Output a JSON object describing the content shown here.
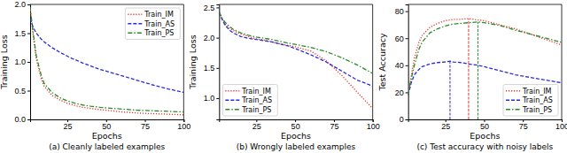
{
  "chart_data": [
    {
      "type": "line",
      "title": "(a) Cleanly labeled examples",
      "x_label": "Epochs",
      "y_label": "Training Loss",
      "x": [
        1,
        3,
        5,
        8,
        10,
        15,
        20,
        25,
        28,
        30,
        35,
        40,
        46,
        50,
        60,
        70,
        80,
        90,
        100
      ],
      "xlim": [
        1,
        100
      ],
      "xticks": [
        25,
        50,
        75,
        100
      ],
      "ylim": [
        0,
        2.0
      ],
      "yticks": [
        {
          "value": 0,
          "label": "0.0"
        },
        {
          "value": 0.5,
          "label": "0.5"
        },
        {
          "value": 1.0,
          "label": "1.0"
        },
        {
          "value": 1.5,
          "label": "1.5"
        },
        {
          "value": 2.0,
          "label": "2.0"
        }
      ],
      "grid": false,
      "legend": "upper right",
      "series": [
        {
          "name": "Train_IM",
          "color": "#e8312f",
          "line_style": "dotted",
          "values": [
            1.95,
            1.45,
            1.05,
            0.72,
            0.58,
            0.42,
            0.34,
            0.28,
            0.26,
            0.24,
            0.21,
            0.19,
            0.17,
            0.16,
            0.13,
            0.11,
            0.1,
            0.09,
            0.08
          ]
        },
        {
          "name": "Train_AS",
          "color": "#2b2bd9",
          "line_style": "dashed",
          "values": [
            1.75,
            1.6,
            1.5,
            1.4,
            1.35,
            1.25,
            1.17,
            1.1,
            1.06,
            1.04,
            0.98,
            0.93,
            0.87,
            0.84,
            0.76,
            0.68,
            0.6,
            0.53,
            0.47
          ]
        },
        {
          "name": "Train_PS",
          "color": "#2a8a2a",
          "line_style": "dashdot",
          "values": [
            1.95,
            1.5,
            1.1,
            0.78,
            0.63,
            0.47,
            0.38,
            0.32,
            0.3,
            0.28,
            0.25,
            0.23,
            0.21,
            0.2,
            0.18,
            0.16,
            0.15,
            0.14,
            0.13
          ]
        }
      ]
    },
    {
      "type": "line",
      "title": "(b) Wrongly labeled examples",
      "x_label": "Epochs",
      "y_label": "Training Loss",
      "x": [
        1,
        3,
        5,
        8,
        10,
        15,
        20,
        25,
        28,
        30,
        35,
        40,
        46,
        50,
        60,
        70,
        80,
        90,
        100
      ],
      "xlim": [
        1,
        100
      ],
      "xticks": [
        25,
        50,
        75,
        100
      ],
      "ylim": [
        0.65,
        2.55
      ],
      "yticks": [
        {
          "value": 1.0,
          "label": "1.0"
        },
        {
          "value": 1.5,
          "label": "1.5"
        },
        {
          "value": 2.0,
          "label": "2.0"
        },
        {
          "value": 2.5,
          "label": "2.5"
        }
      ],
      "grid": false,
      "legend": "lower left",
      "series": [
        {
          "name": "Train_IM",
          "color": "#e8312f",
          "line_style": "dotted",
          "values": [
            2.42,
            2.3,
            2.22,
            2.15,
            2.12,
            2.06,
            2.02,
            1.98,
            1.97,
            1.96,
            1.93,
            1.9,
            1.87,
            1.85,
            1.78,
            1.62,
            1.38,
            1.1,
            0.83
          ]
        },
        {
          "name": "Train_AS",
          "color": "#2b2bd9",
          "line_style": "dashed",
          "values": [
            2.42,
            2.3,
            2.2,
            2.12,
            2.08,
            2.02,
            1.99,
            1.97,
            1.96,
            1.95,
            1.93,
            1.9,
            1.86,
            1.82,
            1.72,
            1.6,
            1.45,
            1.3,
            1.2
          ]
        },
        {
          "name": "Train_PS",
          "color": "#2a8a2a",
          "line_style": "dashdot",
          "values": [
            2.42,
            2.32,
            2.25,
            2.18,
            2.14,
            2.08,
            2.04,
            2.01,
            2.0,
            1.99,
            1.97,
            1.94,
            1.91,
            1.89,
            1.84,
            1.77,
            1.67,
            1.55,
            1.41
          ]
        }
      ]
    },
    {
      "type": "line",
      "title": "(c) Test accuracy with noisy labels",
      "x_label": "Epochs",
      "y_label": "Test Accuracy",
      "x": [
        1,
        3,
        5,
        8,
        10,
        15,
        20,
        25,
        28,
        30,
        35,
        40,
        46,
        50,
        60,
        70,
        80,
        90,
        100
      ],
      "xlim": [
        1,
        100
      ],
      "xticks": [
        25,
        50,
        75,
        100
      ],
      "ylim": [
        0,
        85
      ],
      "yticks": [
        0,
        20,
        40,
        60,
        80
      ],
      "grid": false,
      "legend": "lower right",
      "series": [
        {
          "name": "Train_IM",
          "color": "#e8312f",
          "line_style": "dotted",
          "peak_epoch": 40,
          "values": [
            18,
            32,
            45,
            57,
            62,
            68,
            71,
            73,
            73.5,
            74,
            74,
            74.5,
            73.5,
            73,
            70,
            67,
            63,
            59,
            55
          ]
        },
        {
          "name": "Train_AS",
          "color": "#2b2bd9",
          "line_style": "dashed",
          "peak_epoch": 28,
          "values": [
            18,
            27,
            33,
            37,
            39,
            41,
            42,
            42.5,
            43,
            42.5,
            42,
            41,
            40,
            39,
            36,
            33,
            31,
            29,
            27
          ]
        },
        {
          "name": "Train_PS",
          "color": "#2a8a2a",
          "line_style": "dashdot",
          "peak_epoch": 46,
          "values": [
            18,
            30,
            40,
            52,
            57,
            64,
            67,
            69,
            70,
            70.5,
            71,
            71.5,
            72,
            71.5,
            69.5,
            66,
            63,
            60,
            57
          ]
        }
      ]
    }
  ]
}
